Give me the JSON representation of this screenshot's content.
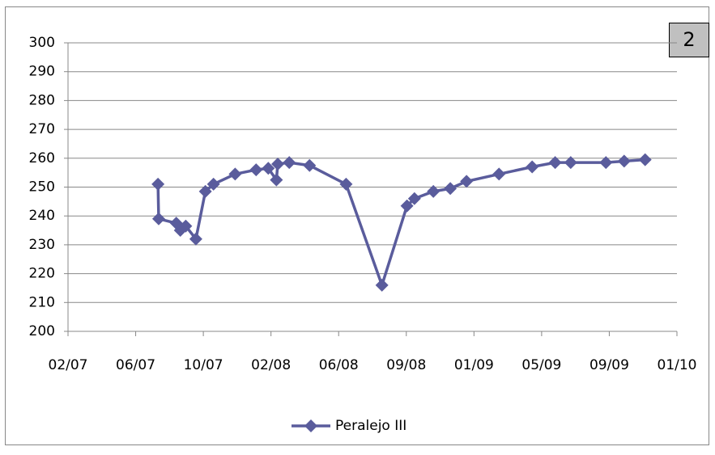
{
  "chart_data": {
    "type": "line",
    "annotation": "2",
    "x": [
      1.33,
      1.34,
      1.6,
      1.66,
      1.74,
      1.89,
      2.03,
      2.15,
      2.47,
      2.78,
      2.96,
      3.08,
      3.1,
      3.27,
      3.57,
      4.11,
      4.64,
      5.01,
      5.12,
      5.4,
      5.65,
      5.89,
      6.37,
      6.86,
      7.2,
      7.43,
      7.95,
      8.22,
      8.53
    ],
    "series": [
      {
        "name": "Peralejo III",
        "color": "#5a5c9c",
        "values": [
          251,
          239,
          237.5,
          235,
          236.5,
          232,
          248.5,
          251,
          254.5,
          256,
          256.5,
          252.5,
          258,
          258.5,
          257.5,
          251,
          216,
          243.5,
          246,
          248.5,
          249.5,
          252,
          254.5,
          257,
          258.5,
          258.5,
          258.5,
          259,
          259.5
        ]
      }
    ],
    "xlim": [
      0,
      9
    ],
    "xticks": [
      {
        "value": 0,
        "label": "02/07"
      },
      {
        "value": 1,
        "label": "06/07"
      },
      {
        "value": 2,
        "label": "10/07"
      },
      {
        "value": 3,
        "label": "02/08"
      },
      {
        "value": 4,
        "label": "06/08"
      },
      {
        "value": 5,
        "label": "09/08"
      },
      {
        "value": 6,
        "label": "01/09"
      },
      {
        "value": 7,
        "label": "05/09"
      },
      {
        "value": 8,
        "label": "09/09"
      },
      {
        "value": 9,
        "label": "01/10"
      }
    ],
    "ylim": [
      200,
      300
    ],
    "yticks": [
      200,
      210,
      220,
      230,
      240,
      250,
      260,
      270,
      280,
      290,
      300
    ],
    "grid": true,
    "legend": "bottom"
  }
}
